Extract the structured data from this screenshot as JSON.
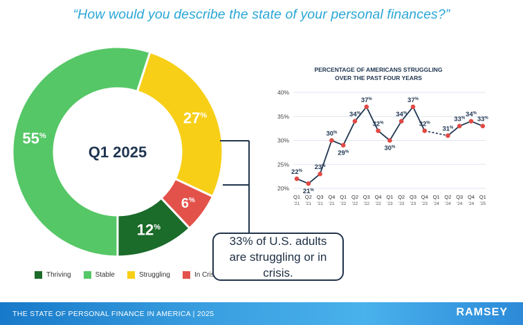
{
  "headline": "“How would you describe the state of your personal finances?”",
  "callout_text": "33% of U.S. adults are struggling or in crisis.",
  "footer": {
    "title": "THE STATE OF PERSONAL FINANCE IN AMERICA | 2025",
    "logo": "RAMSEY"
  },
  "colors": {
    "thriving": "#1b6b2a",
    "stable": "#56c766",
    "struggling": "#f7cf17",
    "in_crisis": "#e3524a",
    "line": "#1f3550",
    "point": "#e04a45",
    "title_blue": "#2aa6d6"
  },
  "chart_data": [
    {
      "type": "pie",
      "title": "Q1 2025",
      "categories": [
        "Stable",
        "Struggling",
        "In Crisis",
        "Thriving"
      ],
      "values": [
        55,
        27,
        6,
        12
      ],
      "labels": [
        "55%",
        "27%",
        "6%",
        "12%"
      ],
      "legend": [
        {
          "label": "Thriving",
          "color": "#1b6b2a"
        },
        {
          "label": "Stable",
          "color": "#56c766"
        },
        {
          "label": "Struggling",
          "color": "#f7cf17"
        },
        {
          "label": "In Crisis",
          "color": "#e3524a"
        }
      ]
    },
    {
      "type": "line",
      "title": "PERCENTAGE OF AMERICANS STRUGGLING",
      "subtitle": "OVER THE PAST FOUR YEARS",
      "x": [
        {
          "q": "Q1",
          "y": "'21"
        },
        {
          "q": "Q2",
          "y": "'21"
        },
        {
          "q": "Q3",
          "y": "'21"
        },
        {
          "q": "Q4",
          "y": "'21"
        },
        {
          "q": "Q1",
          "y": "'22"
        },
        {
          "q": "Q2",
          "y": "'22"
        },
        {
          "q": "Q3",
          "y": "'22"
        },
        {
          "q": "Q4",
          "y": "'22"
        },
        {
          "q": "Q1",
          "y": "'23"
        },
        {
          "q": "Q2",
          "y": "'23"
        },
        {
          "q": "Q3",
          "y": "'23"
        },
        {
          "q": "Q4",
          "y": "'23"
        },
        {
          "q": "Q1",
          "y": "'24"
        },
        {
          "q": "Q2",
          "y": "'24"
        },
        {
          "q": "Q3",
          "y": "'24"
        },
        {
          "q": "Q4",
          "y": "'24"
        },
        {
          "q": "Q1",
          "y": "'25"
        }
      ],
      "values": [
        22,
        21,
        23,
        30,
        29,
        34,
        37,
        32,
        30,
        34,
        37,
        32,
        null,
        31,
        33,
        34,
        33
      ],
      "point_labels": [
        "22",
        "21",
        "23",
        "30",
        "29",
        "34",
        "37",
        "32",
        "30",
        "34",
        "37",
        "32",
        "",
        "31",
        "33",
        "34",
        "33"
      ],
      "gap_after_index": 11,
      "ylim": [
        20,
        40
      ],
      "yticks": [
        "20%",
        "25%",
        "30%",
        "35%",
        "40%"
      ]
    }
  ]
}
